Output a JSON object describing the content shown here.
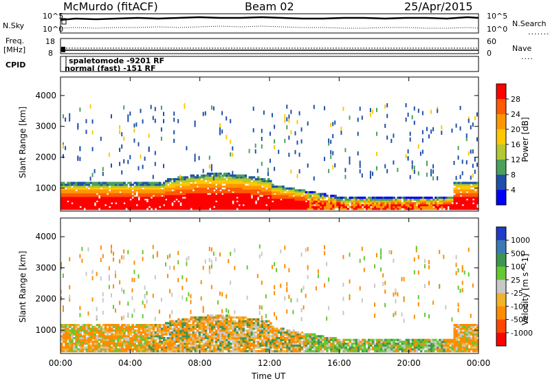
{
  "header": {
    "station": "McMurdo (fitACF)",
    "beam": "Beam 02",
    "date": "25/Apr/2015"
  },
  "top_panels": {
    "nsky_label": "N.Sky",
    "nsky_ticks": [
      "10^5",
      "10^0"
    ],
    "nsearch_label": "N.Search",
    "nsearch_ticks": [
      "10^5",
      "10^0"
    ],
    "freq_label_1": "Freq.",
    "freq_label_2": "[MHz]",
    "freq_ticks": [
      "18",
      "8"
    ],
    "nave_label": "Nave",
    "nave_ticks": [
      "60",
      "0"
    ],
    "cpid_label": "CPID",
    "cpid_lines": [
      "spaletomode -9201 RF",
      "normal (fast) -151 RF"
    ]
  },
  "chart_data": [
    {
      "type": "heatmap",
      "title": "",
      "xlabel": "",
      "ylabel": "Slant Range [km]",
      "x_ticks": [
        "00:00",
        "04:00",
        "08:00",
        "12:00",
        "16:00",
        "20:00",
        "00:00"
      ],
      "y_ticks": [
        1000,
        2000,
        3000,
        4000
      ],
      "ylim": [
        250,
        4600
      ],
      "colorbar": {
        "label": "Power [dB]",
        "ticks": [
          "28",
          "24",
          "20",
          "16",
          "12",
          "8",
          "4"
        ],
        "colors": [
          "#ff0000",
          "#ff5a00",
          "#ff9600",
          "#ffc800",
          "#b4c832",
          "#4ba05a",
          "#1e50aa",
          "#0000ff"
        ]
      }
    },
    {
      "type": "heatmap",
      "title": "",
      "xlabel": "Time UT",
      "ylabel": "Slant Range [km]",
      "x_ticks": [
        "00:00",
        "04:00",
        "08:00",
        "12:00",
        "16:00",
        "20:00",
        "00:00"
      ],
      "y_ticks": [
        1000,
        2000,
        3000,
        4000
      ],
      "ylim": [
        250,
        4600
      ],
      "colorbar": {
        "label": "Velocity [m s^-1]",
        "ticks": [
          "1000",
          "500",
          "100",
          "25",
          "-25",
          "-100",
          "-500",
          "-1000"
        ],
        "colors": [
          "#1e3cc8",
          "#3c78b4",
          "#3c9650",
          "#64c832",
          "#c8c8c8",
          "#f0b428",
          "#ff8c00",
          "#ff4600",
          "#ff0000"
        ]
      }
    }
  ]
}
